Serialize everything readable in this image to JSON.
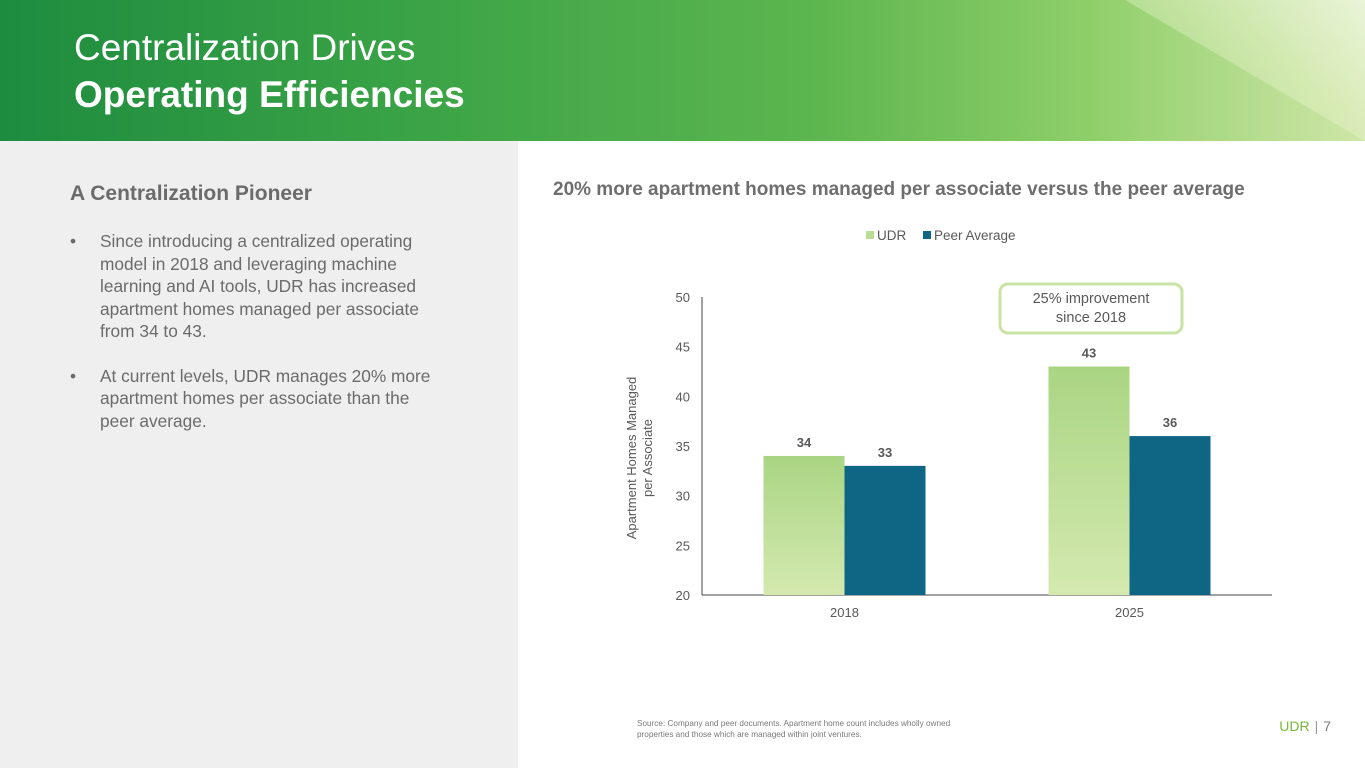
{
  "header": {
    "title_line1": "Centralization Drives",
    "title_line2": "Operating Efficiencies"
  },
  "left": {
    "heading": "A Centralization Pioneer",
    "bullets": [
      "Since introducing a centralized operating model in 2018 and leveraging machine learning and AI tools, UDR has increased apartment homes managed per associate from 34 to 43.",
      "At current levels, UDR manages 20% more apartment homes per associate than the peer average."
    ],
    "bullet_symbol": "•"
  },
  "chart_title": "20% more apartment homes managed per associate versus the peer average",
  "chart_data": {
    "type": "bar",
    "categories": [
      "2018",
      "2025"
    ],
    "series": [
      {
        "name": "UDR",
        "values": [
          34,
          43
        ],
        "data_labels": [
          "34",
          "43"
        ],
        "color": "#b9dd94"
      },
      {
        "name": "Peer Average",
        "values": [
          33,
          36
        ],
        "data_labels": [
          "33",
          "36"
        ],
        "color": "#0e6684"
      }
    ],
    "ylabel_line1": "Apartment Homes Managed",
    "ylabel_line2": "per Associate",
    "ylim": [
      20,
      50
    ],
    "yticks": [
      "20",
      "25",
      "30",
      "35",
      "40",
      "45",
      "50"
    ],
    "legend_position": "top",
    "grid": false,
    "callout_line1": "25% improvement",
    "callout_line2": "since 2018",
    "callout_color": "#c9e3a5"
  },
  "footnote": "Source: Company and peer documents. Apartment home count includes wholly owned properties and those which are managed within joint ventures.",
  "footer": {
    "brand": "UDR",
    "separator": "|",
    "page": "7"
  },
  "colors": {
    "brand_green": "#78b83a",
    "header_start": "#1e8c3f",
    "header_end": "#cfe6a8",
    "panel_gray": "#efefef"
  }
}
